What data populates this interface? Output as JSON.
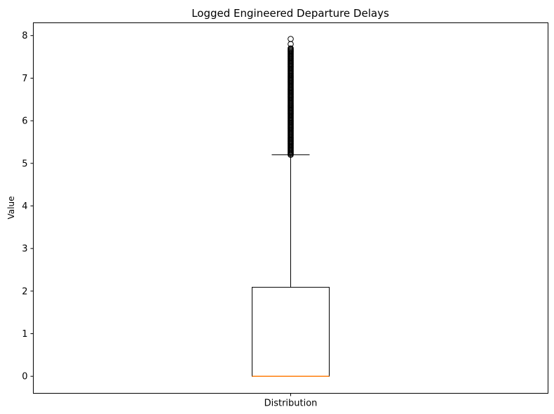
{
  "chart_data": {
    "type": "box",
    "title": "Logged Engineered Departure Delays",
    "xlabel": "",
    "ylabel": "Value",
    "categories": [
      "Distribution"
    ],
    "ylim": [
      -0.4,
      8.3
    ],
    "yticks": [
      0,
      1,
      2,
      3,
      4,
      5,
      6,
      7,
      8
    ],
    "grid": false,
    "box": {
      "whisker_low": 0,
      "q1": 0,
      "median": 0,
      "q3": 2.09,
      "whisker_high": 5.2
    },
    "outliers": {
      "range": [
        5.2,
        7.7
      ],
      "isolated": [
        7.8,
        7.92
      ]
    },
    "colors": {
      "box": "#000000",
      "median": "#ff7f0e",
      "background": "#ffffff"
    }
  }
}
